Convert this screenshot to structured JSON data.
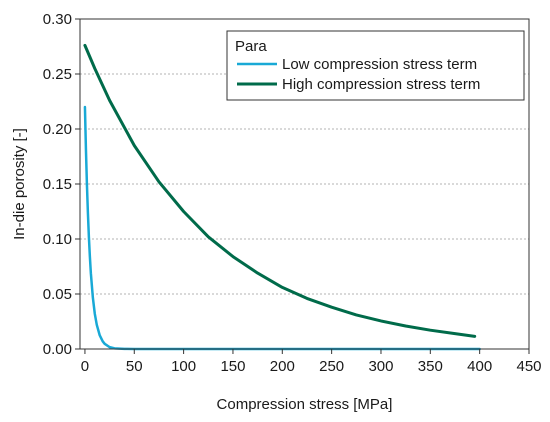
{
  "chart_data": {
    "type": "line",
    "title": "",
    "xlabel": "Compression stress [MPa]",
    "ylabel": "In-die porosity [-]",
    "xlim": [
      -5,
      450
    ],
    "ylim": [
      0,
      0.3
    ],
    "xticks": [
      0,
      50,
      100,
      150,
      200,
      250,
      300,
      350,
      400,
      450
    ],
    "yticks": [
      0.0,
      0.05,
      0.1,
      0.15,
      0.2,
      0.25,
      0.3
    ],
    "xtick_labels": [
      "0",
      "50",
      "100",
      "150",
      "200",
      "250",
      "300",
      "350",
      "400",
      "450"
    ],
    "ytick_labels": [
      "0.00",
      "0.05",
      "0.10",
      "0.15",
      "0.20",
      "0.25",
      "0.30"
    ],
    "grid": "horizontal dotted",
    "legend": {
      "title": "Para",
      "placement": "top-right"
    },
    "series": [
      {
        "name": "Low compression stress term",
        "color": "#19a9d6",
        "x": [
          0,
          1,
          2,
          3,
          4,
          5,
          6,
          8,
          10,
          12,
          15,
          18,
          20,
          25,
          30,
          40,
          50,
          100,
          200,
          300,
          400
        ],
        "y": [
          0.22,
          0.182,
          0.15,
          0.124,
          0.102,
          0.084,
          0.069,
          0.047,
          0.032,
          0.022,
          0.0124,
          0.007,
          0.0047,
          0.0017,
          0.0006,
          0.0001,
          0.0,
          0.0,
          0.0,
          0.0,
          0.0
        ]
      },
      {
        "name": "High compression stress term",
        "color": "#006b4a",
        "x": [
          0,
          10,
          25,
          50,
          75,
          100,
          125,
          150,
          175,
          200,
          225,
          250,
          275,
          300,
          325,
          350,
          375,
          395
        ],
        "y": [
          0.276,
          0.255,
          0.226,
          0.185,
          0.152,
          0.125,
          0.102,
          0.084,
          0.069,
          0.056,
          0.046,
          0.038,
          0.031,
          0.0255,
          0.0209,
          0.0171,
          0.014,
          0.0115
        ]
      }
    ]
  }
}
